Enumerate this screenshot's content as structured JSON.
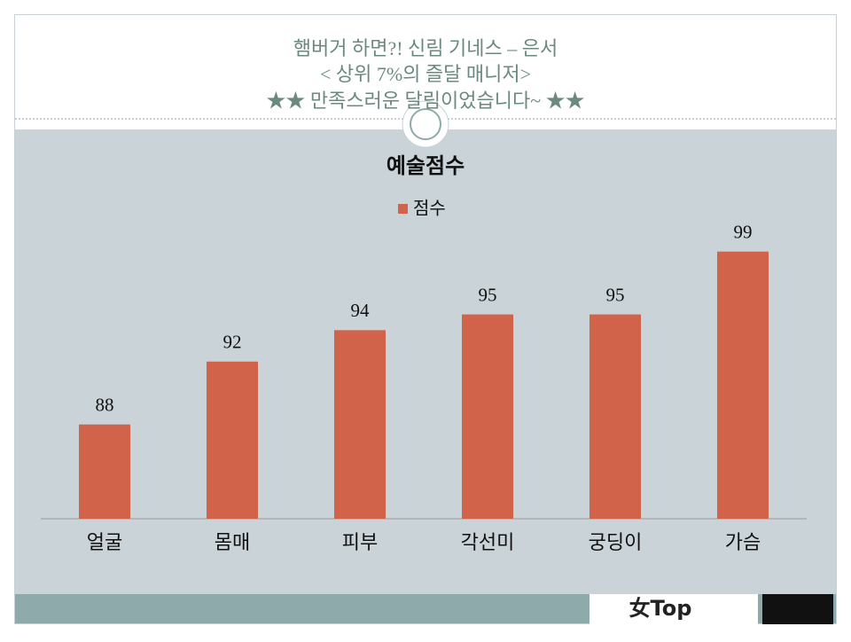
{
  "slide_title": [
    "햄버거 하면?! 신림 기네스 – 은서",
    "< 상위 7%의 즐달 매니저>",
    "★★ 만족스러운 달림이었습니다~ ★★"
  ],
  "logo": "女Top",
  "chart_data": {
    "type": "bar",
    "title": "예술점수",
    "categories": [
      "얼굴",
      "몸매",
      "피부",
      "각선미",
      "궁딩이",
      "가슴"
    ],
    "series": [
      {
        "name": "점수",
        "color": "#d1634a",
        "values": [
          88,
          92,
          94,
          95,
          95,
          99
        ]
      }
    ],
    "ylim": [
      82,
      100
    ],
    "legend": "top",
    "data_labels": true
  }
}
